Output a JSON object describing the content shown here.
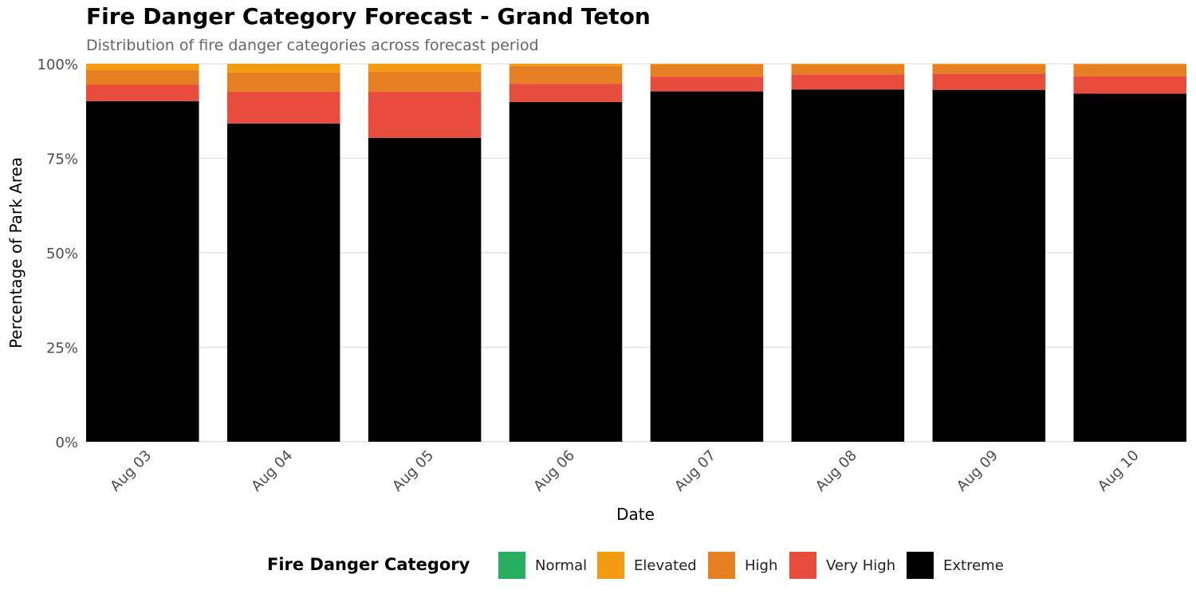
{
  "chart_data": {
    "type": "bar",
    "stacked": true,
    "percent": true,
    "title": "Fire Danger Category Forecast - Grand Teton",
    "subtitle": "Distribution of fire danger categories across forecast period",
    "xlabel": "Date",
    "ylabel": "Percentage of Park Area",
    "ylim": [
      0,
      100
    ],
    "yticks": [
      "0%",
      "25%",
      "50%",
      "75%",
      "100%"
    ],
    "ytick_values": [
      0,
      25,
      50,
      75,
      100
    ],
    "grid": true,
    "legend_position": "bottom",
    "legend_title": "Fire Danger Category",
    "categories": [
      "Aug 03",
      "Aug 04",
      "Aug 05",
      "Aug 06",
      "Aug 07",
      "Aug 08",
      "Aug 09",
      "Aug 10"
    ],
    "series": [
      {
        "name": "Normal",
        "color": "#27ae60",
        "values": [
          0,
          0,
          0,
          0,
          0,
          0,
          0,
          0
        ]
      },
      {
        "name": "Elevated",
        "color": "#f39c12",
        "values": [
          1.7,
          2.3,
          2.1,
          0.6,
          0.2,
          0.2,
          0.2,
          0.2
        ]
      },
      {
        "name": "High",
        "color": "#e67e22",
        "values": [
          3.8,
          5.1,
          5.3,
          4.7,
          3.2,
          2.6,
          2.4,
          3.1
        ]
      },
      {
        "name": "Very High",
        "color": "#e74c3c",
        "values": [
          4.4,
          8.4,
          12.2,
          4.8,
          3.9,
          4.0,
          4.3,
          4.6
        ]
      },
      {
        "name": "Extreme",
        "color": "#000000",
        "values": [
          90.1,
          84.2,
          80.4,
          89.9,
          92.7,
          93.2,
          93.1,
          92.1
        ]
      }
    ]
  }
}
